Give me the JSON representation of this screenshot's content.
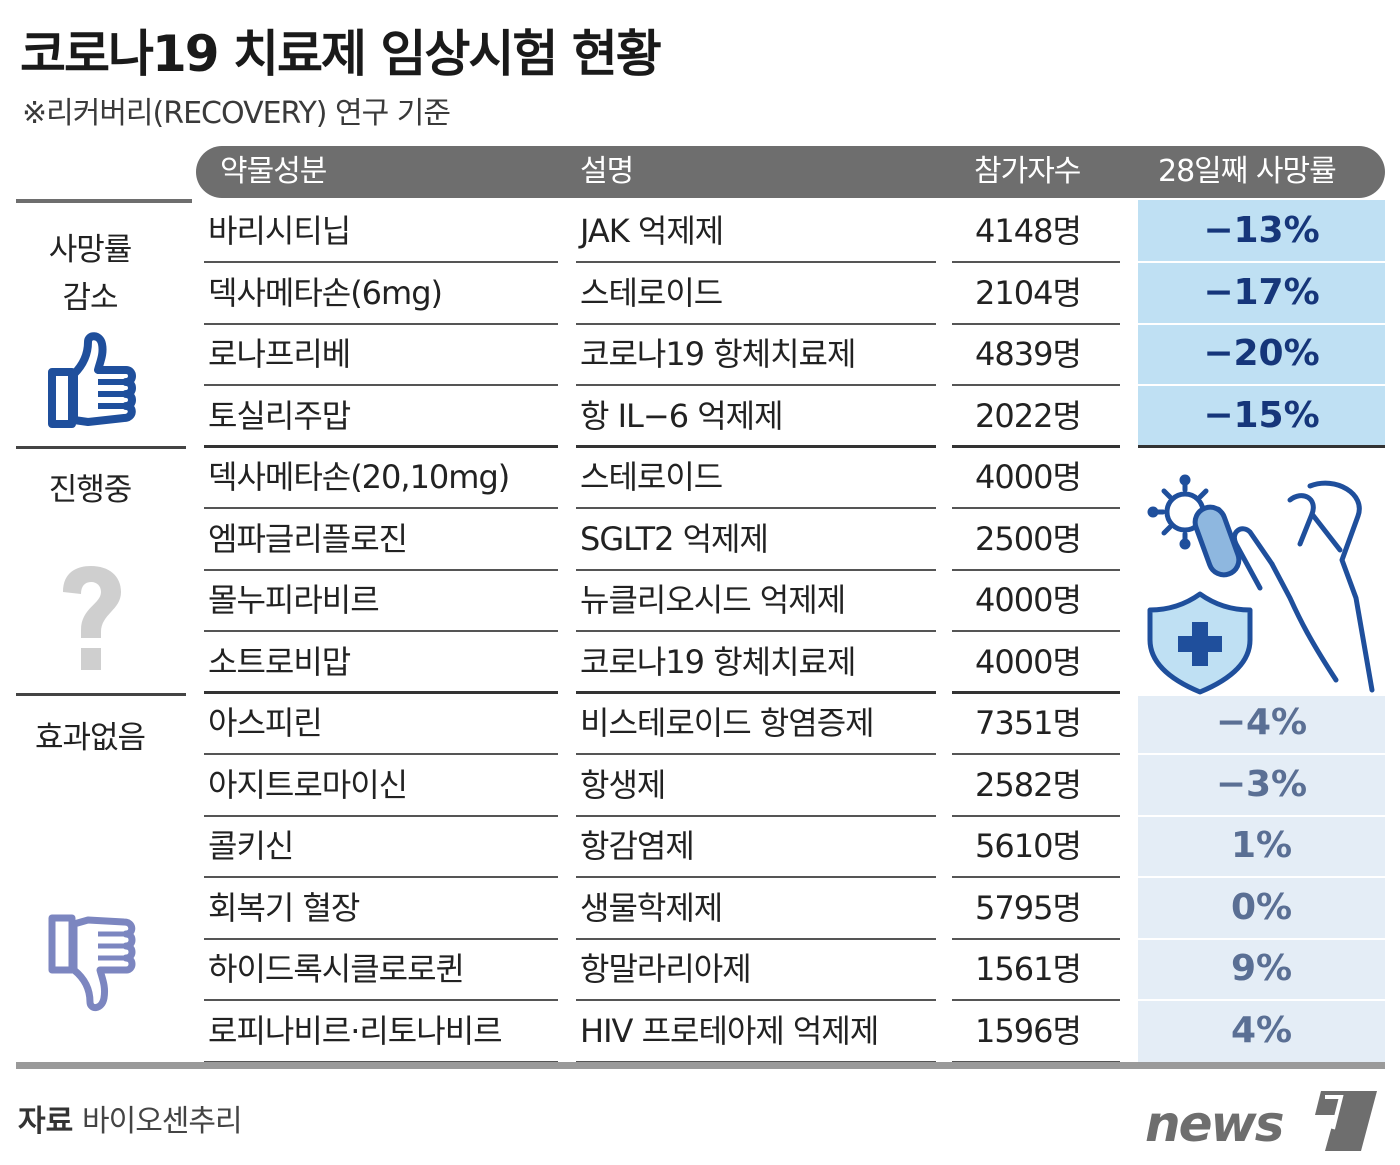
{
  "title": "코로나19 치료제 임상시험 현황",
  "subtitle": "※리커버리(RECOVERY) 연구 기준",
  "columns": {
    "drug": "약물성분",
    "desc": "설명",
    "participants": "참가자수",
    "mortality": "28일째 사망률"
  },
  "categories": [
    {
      "label_line1": "사망률",
      "label_line2": "감소",
      "icon": "thumbs-up-icon"
    },
    {
      "label_line1": "진행중",
      "label_line2": "",
      "icon": "question-mark-icon"
    },
    {
      "label_line1": "효과없음",
      "label_line2": "",
      "icon": "thumbs-down-icon"
    }
  ],
  "rows": [
    {
      "drug": "바리시티닙",
      "desc": "JAK 억제제",
      "participants": "4148명",
      "mortality": "−13%"
    },
    {
      "drug": "덱사메타손(6mg)",
      "desc": "스테로이드",
      "participants": "2104명",
      "mortality": "−17%"
    },
    {
      "drug": "로나프리베",
      "desc": "코로나19 항체치료제",
      "participants": "4839명",
      "mortality": "−20%"
    },
    {
      "drug": "토실리주맙",
      "desc": "항 IL−6 억제제",
      "participants": "2022명",
      "mortality": "−15%"
    },
    {
      "drug": "덱사메타손(20,10mg)",
      "desc": "스테로이드",
      "participants": "4000명",
      "mortality": ""
    },
    {
      "drug": "엠파글리플로진",
      "desc": "SGLT2 억제제",
      "participants": "2500명",
      "mortality": ""
    },
    {
      "drug": "몰누피라비르",
      "desc": "뉴클리오시드 억제제",
      "participants": "4000명",
      "mortality": ""
    },
    {
      "drug": "소트로비맙",
      "desc": "코로나19 항체치료제",
      "participants": "4000명",
      "mortality": ""
    },
    {
      "drug": "아스피린",
      "desc": "비스테로이드 항염증제",
      "participants": "7351명",
      "mortality": "−4%"
    },
    {
      "drug": "아지트로마이신",
      "desc": "항생제",
      "participants": "2582명",
      "mortality": "−3%"
    },
    {
      "drug": "콜키신",
      "desc": "항감염제",
      "participants": "5610명",
      "mortality": "1%"
    },
    {
      "drug": "회복기 혈장",
      "desc": "생물학제제",
      "participants": "5795명",
      "mortality": "0%"
    },
    {
      "drug": "하이드록시클로로퀸",
      "desc": "항말라리아제",
      "participants": "1561명",
      "mortality": "9%"
    },
    {
      "drug": "로피나비르·리토나비르",
      "desc": "HIV 프로테아제 억제제",
      "participants": "1596명",
      "mortality": "4%"
    }
  ],
  "source": {
    "label": "자료",
    "value": "바이오센추리"
  },
  "logo": "news1",
  "colors": {
    "header": "#6e6e6e",
    "reduce_bg": "#bfe0f3",
    "reduce_text": "#16367a",
    "noeffect_bg": "#e4edf6",
    "noeffect_text": "#5a6f94",
    "icon_blue": "#1f4f9c",
    "icon_purple": "#7c86c0"
  }
}
